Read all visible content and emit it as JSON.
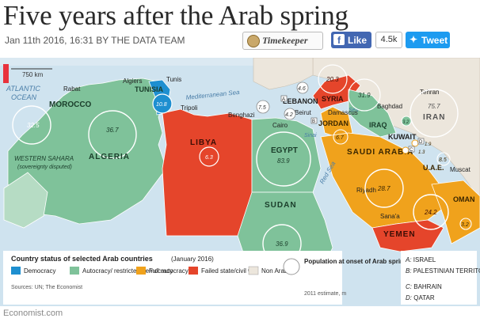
{
  "header": {
    "title": "Five years after the Arab spring",
    "byline": "Jan 11th 2016, 16:31 BY THE DATA TEAM",
    "timekeeper_label": "Timekeeper",
    "like_label": "Like",
    "like_count": "4.5k",
    "tweet_label": "Tweet"
  },
  "map": {
    "scale_label": "750 km",
    "seas": [
      "ATLANTIC",
      "OCEAN",
      "Mediterranean Sea",
      "Red Sea",
      "Sinai",
      "Sea"
    ],
    "cities": [
      "Algiers",
      "Tunis",
      "Rabat",
      "Tripoli",
      "Benghazi",
      "Cairo",
      "Beirut",
      "Damascus",
      "Baghdad",
      "Tehran",
      "Riyadh",
      "Muscat",
      "Sana'a",
      "A",
      "B",
      "C",
      "D"
    ],
    "countries": [
      {
        "name": "MOROCCO",
        "value": "32.5",
        "status": "Autocracy/restricted democracy"
      },
      {
        "name": "ALGERIA",
        "value": "36.7",
        "status": "Autocracy/restricted democracy"
      },
      {
        "name": "TUNISIA",
        "value": "10.8",
        "status": "Democracy"
      },
      {
        "name": "LIBYA",
        "value": "6.3",
        "status": "Failed state/civil war"
      },
      {
        "name": "EGYPT",
        "value": "83.9",
        "status": "Autocracy/restricted democracy"
      },
      {
        "name": "SUDAN",
        "value": "36.9",
        "status": "Autocracy/restricted democracy"
      },
      {
        "name": "LEBANON",
        "value": "4.2",
        "status": "Autocracy/restricted democracy"
      },
      {
        "name": "SYRIA",
        "value": "20.3",
        "status": "Failed state/civil war"
      },
      {
        "name": "JORDAN",
        "value": "6.7",
        "status": "Full autocracy"
      },
      {
        "name": "IRAQ",
        "value": "31.9",
        "status": "Autocracy/restricted democracy"
      },
      {
        "name": "KUWAIT",
        "value": "3.2",
        "status": "Autocracy/restricted democracy"
      },
      {
        "name": "IRAN",
        "value": "75.7",
        "status": "Non Arab"
      },
      {
        "name": "SAUDI ARABIA",
        "value": "28.7",
        "status": "Full autocracy"
      },
      {
        "name": "U.A.E.",
        "value": "8.5",
        "status": "Full autocracy"
      },
      {
        "name": "OMAN",
        "value": "3.2",
        "status": "Full autocracy"
      },
      {
        "name": "YEMEN",
        "value": "24.2",
        "status": "Failed state/civil war"
      },
      {
        "name": "WESTERN SAHARA",
        "note": "(sovereignty disputed)",
        "status": "Non Arab"
      },
      {
        "name": "ISRAEL",
        "value": "7.5",
        "status": "Non Arab"
      },
      {
        "name": "PALESTINIAN TERRITORIES",
        "value": "4.6",
        "status": "Autocracy/restricted democracy"
      },
      {
        "name": "BAHRAIN",
        "value": "1.3",
        "status": "Full autocracy"
      },
      {
        "name": "QATAR",
        "value": "1.9",
        "status": "Full autocracy"
      }
    ],
    "legend_title": "Country status of selected Arab countries",
    "legend_date": "(January 2016)",
    "legend_items": [
      {
        "label": "Democracy",
        "color": "#1e8fd0"
      },
      {
        "label": "Autocracy/ restricted democracy",
        "color": "#7fc29a"
      },
      {
        "label": "Full autocracy",
        "color": "#f0a21c"
      },
      {
        "label": "Failed state/civil war",
        "color": "#e5452b"
      },
      {
        "label": "Non Arab",
        "color": "#ece6dc"
      }
    ],
    "sources": "Sources: UN; The Economist",
    "population_label": "Population at onset of Arab spring",
    "population_sub": "2011 estimate, m",
    "key": [
      {
        "letter": "A:",
        "name": "ISRAEL"
      },
      {
        "letter": "B:",
        "name": "PALESTINIAN TERRITORIES"
      },
      {
        "letter": "C:",
        "name": "BAHRAIN"
      },
      {
        "letter": "D:",
        "name": "QATAR"
      }
    ]
  },
  "footer": "Economist.com"
}
